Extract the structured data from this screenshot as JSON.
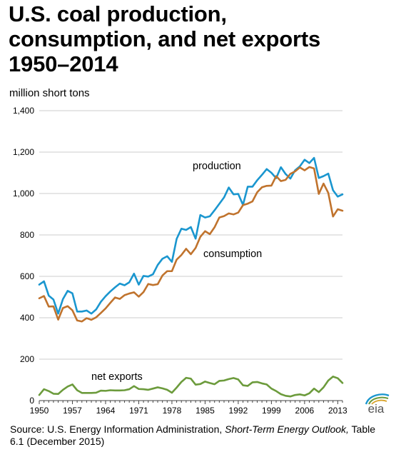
{
  "title_lines": [
    "U.S. coal production,",
    "consumption, and net exports",
    "1950–2014"
  ],
  "unit_label": "million short tons",
  "source": {
    "prefix": "Source: U.S. Energy Information Administration, ",
    "publication": "Short-Term Energy Outlook,",
    "suffix": " Table 6.1 (December 2015)"
  },
  "logo_text": "eia",
  "colors": {
    "production": "#1a96cf",
    "consumption": "#c0732d",
    "net_exports": "#6c9b3c",
    "gridline": "#cccccc",
    "axis": "#444444"
  },
  "chart_data": {
    "type": "line",
    "ylabel": "million short tons",
    "ylim": [
      0,
      1400
    ],
    "yticks": [
      0,
      200,
      400,
      600,
      800,
      1000,
      1200,
      1400
    ],
    "ytick_labels": [
      "0",
      "200",
      "400",
      "600",
      "800",
      "1,000",
      "1,200",
      "1,400"
    ],
    "xlim": [
      1950,
      2014
    ],
    "xticks": [
      1950,
      1957,
      1964,
      1971,
      1978,
      1985,
      1992,
      1999,
      2006,
      2013
    ],
    "xtick_labels": [
      "1950",
      "1957",
      "1964",
      "1971",
      "1978",
      "1985",
      "1992",
      "1999",
      "2006",
      "2013"
    ],
    "grid": "horizontal",
    "legend": "inline labels",
    "x": [
      1950,
      1951,
      1952,
      1953,
      1954,
      1955,
      1956,
      1957,
      1958,
      1959,
      1960,
      1961,
      1962,
      1963,
      1964,
      1965,
      1966,
      1967,
      1968,
      1969,
      1970,
      1971,
      1972,
      1973,
      1974,
      1975,
      1976,
      1977,
      1978,
      1979,
      1980,
      1981,
      1982,
      1983,
      1984,
      1985,
      1986,
      1987,
      1988,
      1989,
      1990,
      1991,
      1992,
      1993,
      1994,
      1995,
      1996,
      1997,
      1998,
      1999,
      2000,
      2001,
      2002,
      2003,
      2004,
      2005,
      2006,
      2007,
      2008,
      2009,
      2010,
      2011,
      2012,
      2013,
      2014
    ],
    "series": [
      {
        "name": "production",
        "values": [
          560,
          576,
          507,
          488,
          420,
          490,
          530,
          518,
          430,
          430,
          435,
          420,
          440,
          477,
          504,
          527,
          547,
          565,
          557,
          571,
          613,
          560,
          602,
          599,
          610,
          655,
          685,
          697,
          670,
          781,
          830,
          824,
          838,
          782,
          896,
          884,
          890,
          919,
          950,
          981,
          1029,
          996,
          998,
          945,
          1033,
          1033,
          1064,
          1090,
          1118,
          1100,
          1074,
          1127,
          1094,
          1072,
          1112,
          1131,
          1163,
          1147,
          1172,
          1075,
          1084,
          1096,
          1016,
          985,
          996
        ]
      },
      {
        "name": "consumption",
        "values": [
          494,
          505,
          454,
          455,
          391,
          447,
          456,
          436,
          387,
          382,
          398,
          390,
          402,
          423,
          445,
          472,
          498,
          491,
          509,
          517,
          523,
          502,
          524,
          563,
          558,
          562,
          604,
          625,
          625,
          681,
          703,
          733,
          707,
          737,
          791,
          818,
          804,
          837,
          884,
          891,
          904,
          899,
          908,
          944,
          951,
          962,
          1006,
          1030,
          1037,
          1038,
          1084,
          1060,
          1066,
          1095,
          1107,
          1126,
          1112,
          1128,
          1121,
          998,
          1048,
          1003,
          889,
          924,
          917
        ]
      },
      {
        "name": "net exports",
        "values": [
          27,
          55,
          46,
          33,
          32,
          52,
          68,
          78,
          50,
          37,
          37,
          37,
          38,
          48,
          47,
          50,
          49,
          49,
          50,
          55,
          70,
          56,
          55,
          52,
          58,
          64,
          59,
          52,
          38,
          63,
          90,
          110,
          106,
          77,
          80,
          92,
          85,
          79,
          95,
          97,
          104,
          109,
          102,
          74,
          71,
          88,
          90,
          83,
          78,
          58,
          46,
          31,
          23,
          20,
          27,
          30,
          25,
          35,
          58,
          41,
          64,
          97,
          116,
          108,
          85
        ]
      }
    ],
    "annotations": [
      {
        "text": "production",
        "series": "production"
      },
      {
        "text": "consumption",
        "series": "consumption"
      },
      {
        "text": "net exports",
        "series": "net exports"
      }
    ]
  }
}
